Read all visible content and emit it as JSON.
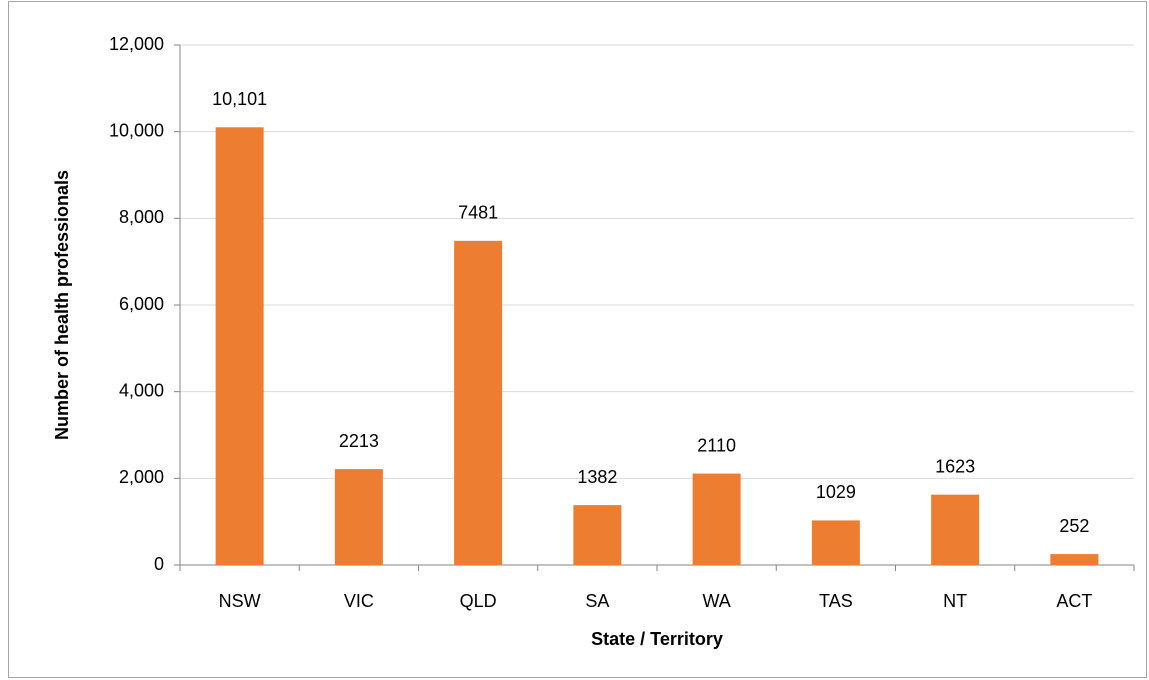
{
  "chart_data": {
    "type": "bar",
    "x_label": "State / Territory",
    "y_label": "Number of health professionals",
    "categories": [
      "NSW",
      "VIC",
      "QLD",
      "SA",
      "WA",
      "TAS",
      "NT",
      "ACT"
    ],
    "values": [
      10101,
      2213,
      7481,
      1382,
      2110,
      1029,
      1623,
      252
    ],
    "value_labels": [
      "10,101",
      "2213",
      "7481",
      "1382",
      "2110",
      "1029",
      "1623",
      "252"
    ],
    "color": "#ed7d31",
    "ylim": [
      0,
      12000
    ],
    "yticks": [
      0,
      {
        "value": 2000,
        "label": "2,000"
      },
      {
        "value": 4000,
        "label": "4,000"
      },
      {
        "value": 6000,
        "label": "6,000"
      },
      {
        "value": 8000,
        "label": "8,000"
      },
      {
        "value": 10000,
        "label": "10,000"
      },
      {
        "value": 12000,
        "label": "12,000"
      }
    ],
    "grid": true
  }
}
